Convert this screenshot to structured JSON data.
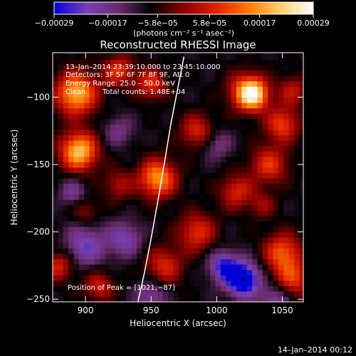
{
  "chart_data": {
    "type": "heatmap",
    "title": "Reconstructed RHESSI Image",
    "xlabel": "Heliocentric X (arcsec)",
    "ylabel": "Heliocentric Y (arcsec)",
    "xlim": [
      875,
      1066
    ],
    "ylim": [
      -252,
      -67
    ],
    "x_ticks": [
      900,
      950,
      1000,
      1050
    ],
    "x_tick_labels": [
      "900",
      "950",
      "1000",
      "1050"
    ],
    "y_ticks": [
      -100,
      -150,
      -200,
      -250
    ],
    "y_tick_labels": [
      "−100",
      "−150",
      "−200",
      "−250"
    ],
    "colorbar": {
      "ticks": [
        -0.00029,
        -0.00017,
        -5.8e-05,
        5.8e-05,
        0.00017,
        0.00029
      ],
      "tick_labels": [
        "−0.00029",
        "−0.00017",
        "−5.8e−05",
        "5.8e−05",
        "0.00017",
        "0.00029"
      ],
      "range": [
        -0.00029,
        0.00029
      ],
      "unit_label": "(photons cm⁻² s⁻¹ asec⁻²)",
      "colormap": [
        "#0000d8",
        "#7a3fb4",
        "#6a2c6a",
        "#000000",
        "#8a0000",
        "#e02000",
        "#ff7a00",
        "#ffd070",
        "#ffffff"
      ]
    },
    "annotations": {
      "time_range": "13–Jan–2014 23:39:10.000 to 23:45:10.000",
      "detectors": "Detectors: 3F 5F 6F 7F 8F 9F, Att 0",
      "energy": "Energy Range: 25.0 – 50.0 keV",
      "method": "Clean",
      "counts": "Total counts: 1.48E+04",
      "peak": "Position of Peak = [1021,−87]"
    },
    "peak_position": [
      1021,
      -87
    ],
    "limb_curve": [
      [
        940,
        -252
      ],
      [
        945,
        -230
      ],
      [
        950,
        -205
      ],
      [
        955,
        -178
      ],
      [
        960,
        -150
      ],
      [
        965,
        -120
      ],
      [
        970,
        -95
      ],
      [
        975,
        -70
      ]
    ],
    "blobs": [
      {
        "x": 893,
        "y": -97,
        "a": 0.95,
        "r": 11
      },
      {
        "x": 895,
        "y": -140,
        "a": 1.0,
        "r": 10
      },
      {
        "x": 925,
        "y": -80,
        "a": 0.55,
        "r": 8
      },
      {
        "x": 950,
        "y": -90,
        "a": 0.55,
        "r": 8
      },
      {
        "x": 955,
        "y": -160,
        "a": 0.85,
        "r": 10
      },
      {
        "x": 985,
        "y": -125,
        "a": 0.5,
        "r": 9
      },
      {
        "x": 1022,
        "y": -95,
        "a": 0.55,
        "r": 10
      },
      {
        "x": 1028,
        "y": -98,
        "a": 0.9,
        "r": 8
      },
      {
        "x": 1050,
        "y": -120,
        "a": 0.6,
        "r": 9
      },
      {
        "x": 1058,
        "y": -95,
        "a": 0.4,
        "r": 8
      },
      {
        "x": 1040,
        "y": -150,
        "a": 0.55,
        "r": 10
      },
      {
        "x": 1015,
        "y": -170,
        "a": 0.5,
        "r": 9
      },
      {
        "x": 985,
        "y": -200,
        "a": 0.55,
        "r": 10
      },
      {
        "x": 1050,
        "y": -215,
        "a": 0.65,
        "r": 10
      },
      {
        "x": 1058,
        "y": -235,
        "a": 0.55,
        "r": 10
      },
      {
        "x": 960,
        "y": -225,
        "a": 0.5,
        "r": 10
      },
      {
        "x": 880,
        "y": -225,
        "a": 0.5,
        "r": 8
      },
      {
        "x": 910,
        "y": -240,
        "a": 0.45,
        "r": 8
      },
      {
        "x": 925,
        "y": -165,
        "a": 0.35,
        "r": 8
      },
      {
        "x": 900,
        "y": -185,
        "a": 0.3,
        "r": 7
      },
      {
        "x": 1035,
        "y": -180,
        "a": 0.3,
        "r": 7
      },
      {
        "x": 900,
        "y": -210,
        "a": -0.5,
        "r": 11
      },
      {
        "x": 1020,
        "y": -235,
        "a": -0.95,
        "r": 9
      },
      {
        "x": 930,
        "y": -205,
        "a": -0.45,
        "r": 9
      },
      {
        "x": 1005,
        "y": -225,
        "a": -0.6,
        "r": 8
      },
      {
        "x": 890,
        "y": -170,
        "a": -0.35,
        "r": 7
      },
      {
        "x": 925,
        "y": -125,
        "a": -0.3,
        "r": 8
      },
      {
        "x": 1000,
        "y": -135,
        "a": -0.3,
        "r": 8
      },
      {
        "x": 1045,
        "y": -250,
        "a": -0.45,
        "r": 8
      },
      {
        "x": 950,
        "y": -247,
        "a": -0.4,
        "r": 8
      }
    ]
  },
  "footer": {
    "timestamp": "14–Jan–2014 00:12"
  }
}
